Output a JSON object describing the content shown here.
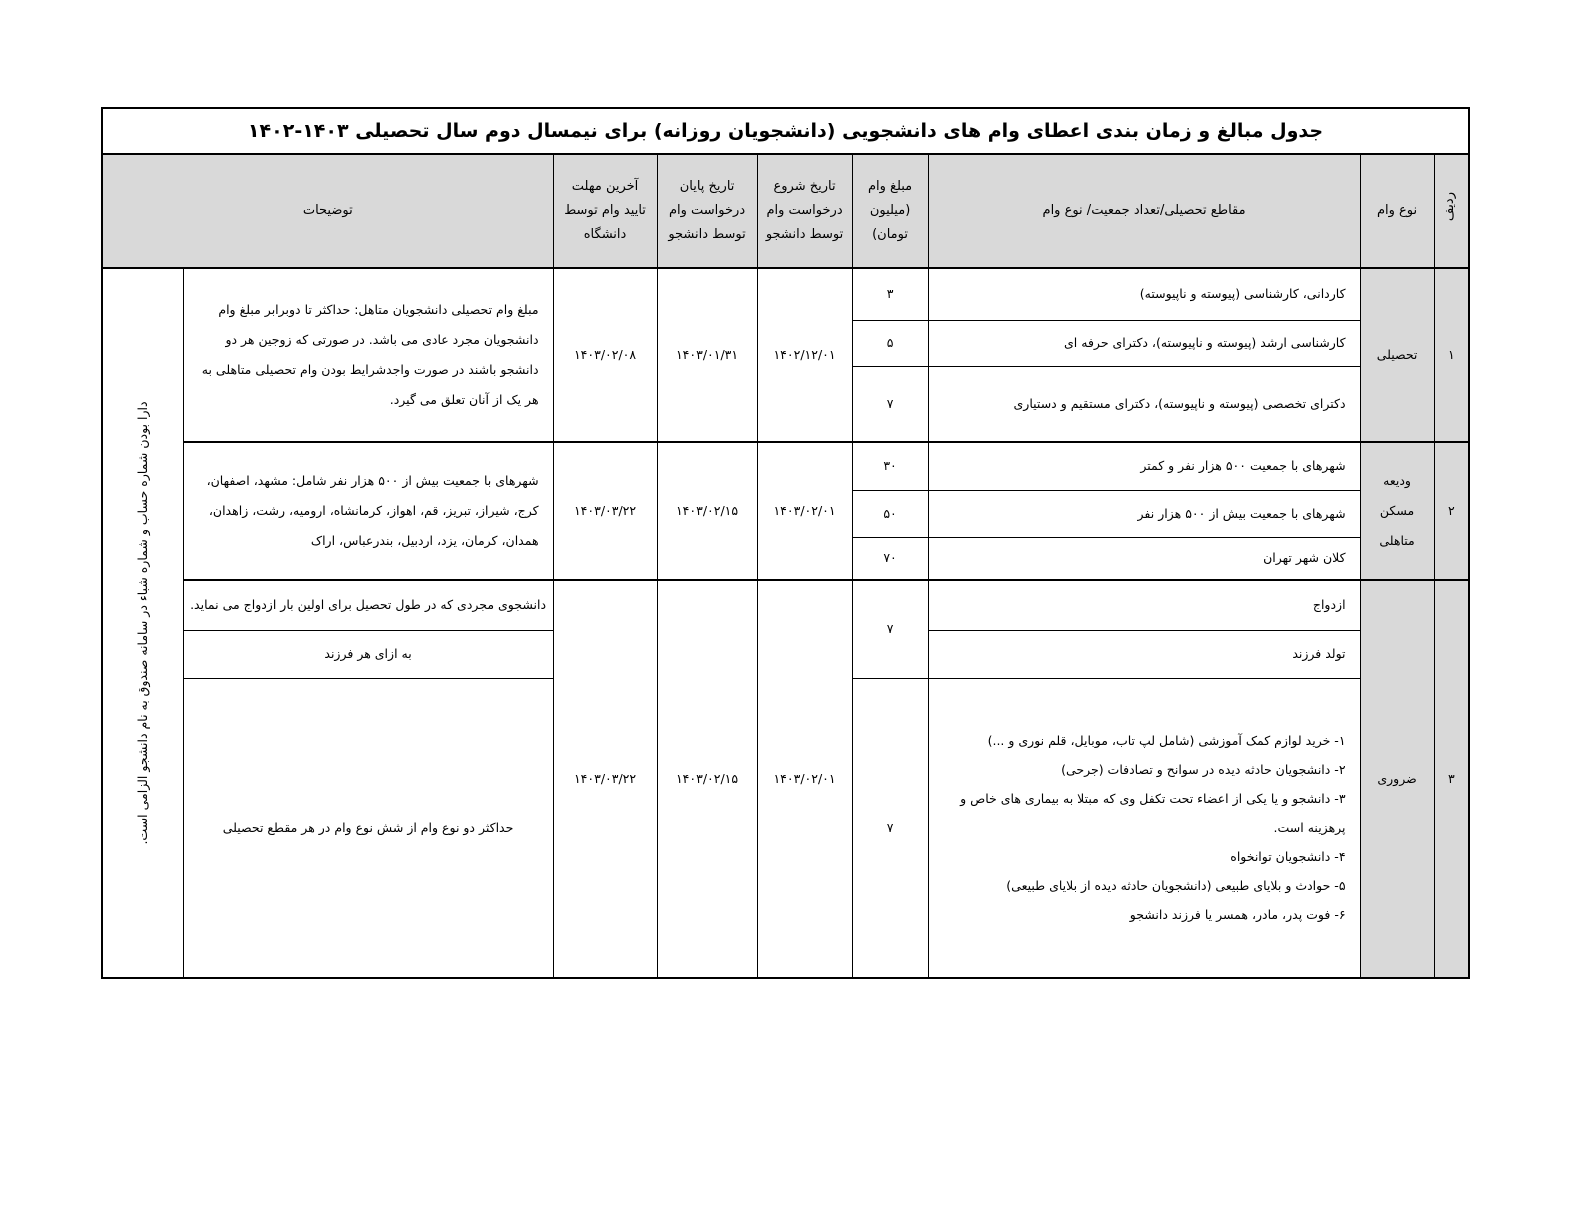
{
  "title": "جدول مبالغ و زمان بندی اعطای وام های دانشجویی (دانشجویان روزانه) برای نیمسال دوم سال تحصیلی ۱۴۰۳-۱۴۰۲",
  "headers": {
    "row_no": "ردیف",
    "loan_type": "نوع وام",
    "section": "مقاطع تحصیلی/تعداد جمعیت/ نوع وام",
    "amount": "مبلغ وام (میلیون تومان)",
    "start": "تاریخ شروع درخواست وام توسط دانشجو",
    "end": "تاریخ پایان درخواست وام توسط دانشجو",
    "deadline": "آخرین مهلت تایید وام توسط دانشگاه",
    "notes": "توضیحات"
  },
  "side_note": "دارا بودن شماره حساب و شماره شباء در سامانه صندوق به نام دانشجو الزامی است.",
  "groups": [
    {
      "row_no": "۱",
      "loan_type": "تحصیلی",
      "items": [
        {
          "section": "کاردانی، کارشناسی (پیوسته و ناپیوسته)",
          "amount": "۳"
        },
        {
          "section": "کارشناسی ارشد (پیوسته و ناپیوسته)، دکترای حرفه ای",
          "amount": "۵"
        },
        {
          "section": "دکترای تخصصی (پیوسته و ناپیوسته)، دکترای مستقیم و دستیاری",
          "amount": "۷"
        }
      ],
      "start": "۱۴۰۲/۱۲/۰۱",
      "end": "۱۴۰۳/۰۱/۳۱",
      "deadline": "۱۴۰۳/۰۲/۰۸",
      "note": "مبلغ وام تحصیلی دانشجویان متاهل: حداکثر تا دوبرابر مبلغ وام دانشجویان مجرد عادی می باشد. در صورتی که زوجین هر دو دانشجو باشند در صورت واجدشرایط بودن وام تحصیلی متاهلی به هر یک از آنان تعلق می گیرد."
    },
    {
      "row_no": "۲",
      "loan_type": "ودیعه مسکن متاهلی",
      "items": [
        {
          "section": "شهرهای با جمعیت ۵۰۰ هزار نفر و کمتر",
          "amount": "۳۰"
        },
        {
          "section": "شهرهای با جمعیت بیش از ۵۰۰ هزار نفر",
          "amount": "۵۰"
        },
        {
          "section": "کلان شهر تهران",
          "amount": "۷۰"
        }
      ],
      "start": "۱۴۰۳/۰۲/۰۱",
      "end": "۱۴۰۳/۰۲/۱۵",
      "deadline": "۱۴۰۳/۰۳/۲۲",
      "note": "شهرهای با جمعیت بیش از ۵۰۰ هزار نفر شامل: مشهد، اصفهان، کرج، شیراز، تبریز، قم، اهواز، کرمانشاه، ارومیه، رشت، زاهدان، همدان، کرمان، یزد، اردبیل، بندرعباس، اراک"
    },
    {
      "row_no": "۳",
      "loan_type": "ضروری",
      "items": [
        {
          "section": "ازدواج",
          "note": "دانشجوی مجردی که در طول تحصیل برای اولین بار ازدواج می نماید."
        },
        {
          "section": "تولد فرزند",
          "note": "به ازای هر فرزند"
        },
        {
          "section_list": [
            "۱- خرید لوازم کمک آموزشی (شامل لپ تاب، موبایل، قلم نوری و ...)",
            "۲- دانشجویان حادثه دیده در سوانح و تصادفات (جرحی)",
            "۳-  دانشجو و یا یکی از اعضاء تحت تکفل وی که مبتلا به بیماری های خاص و پرهزینه است.",
            "۴- دانشجویان توانخواه",
            "۵- حوادث و بلایای طبیعی (دانشجویان حادثه دیده از بلایای طبیعی)",
            "۶- فوت پدر، مادر، همسر یا فرزند دانشجو"
          ],
          "amount": "۷",
          "note": "حداکثر دو نوع وام از شش نوع وام در هر مقطع تحصیلی"
        }
      ],
      "amount_marriage_birth": "۷",
      "start": "۱۴۰۳/۰۲/۰۱",
      "end": "۱۴۰۳/۰۲/۱۵",
      "deadline": "۱۴۰۳/۰۳/۲۲"
    }
  ]
}
